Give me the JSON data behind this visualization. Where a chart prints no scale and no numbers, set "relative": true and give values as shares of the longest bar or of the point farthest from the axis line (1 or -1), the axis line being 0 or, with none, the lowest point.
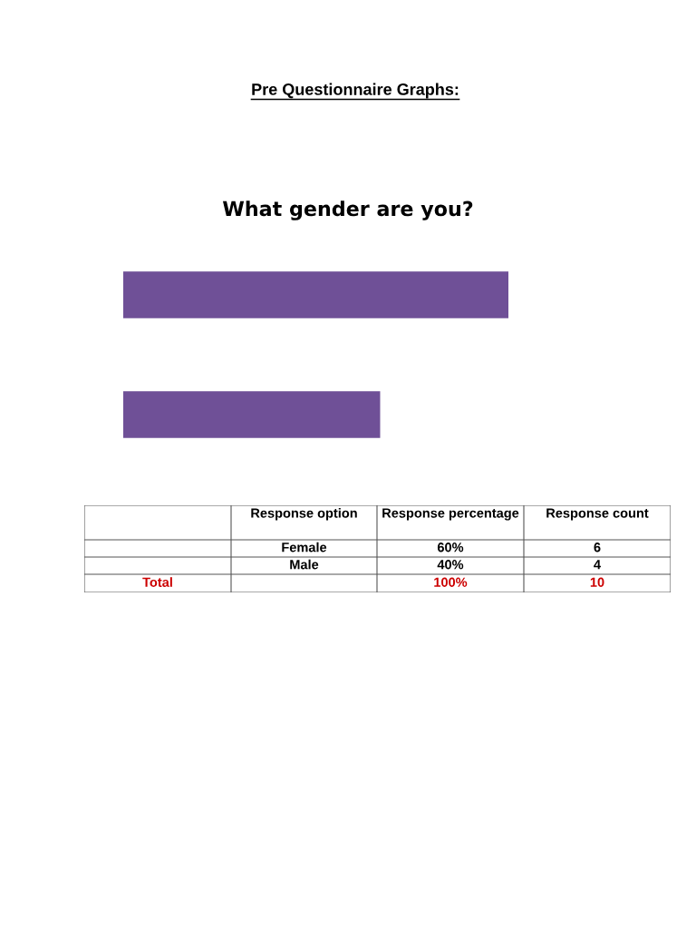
{
  "chart_data": [
    {
      "type": "bar",
      "orientation": "horizontal",
      "relative": true,
      "title": "What gender are you?",
      "annotations": [
        "Pre Questionnaire Graphs:"
      ],
      "categories": [
        null,
        null
      ],
      "values": [
        1,
        0.667
      ],
      "color": "#6f5097"
    },
    {
      "type": "other",
      "categories": [
        null,
        "Response option",
        "Response percentage",
        "Response count"
      ],
      "cell_labels": [
        [
          null,
          "Female",
          "60%",
          "6"
        ],
        [
          null,
          "Male",
          "40%",
          "4"
        ],
        [
          "Total",
          null,
          "100%",
          "10"
        ]
      ],
      "colors": [
        "#000000",
        "#000000",
        "#cc0000"
      ]
    }
  ]
}
